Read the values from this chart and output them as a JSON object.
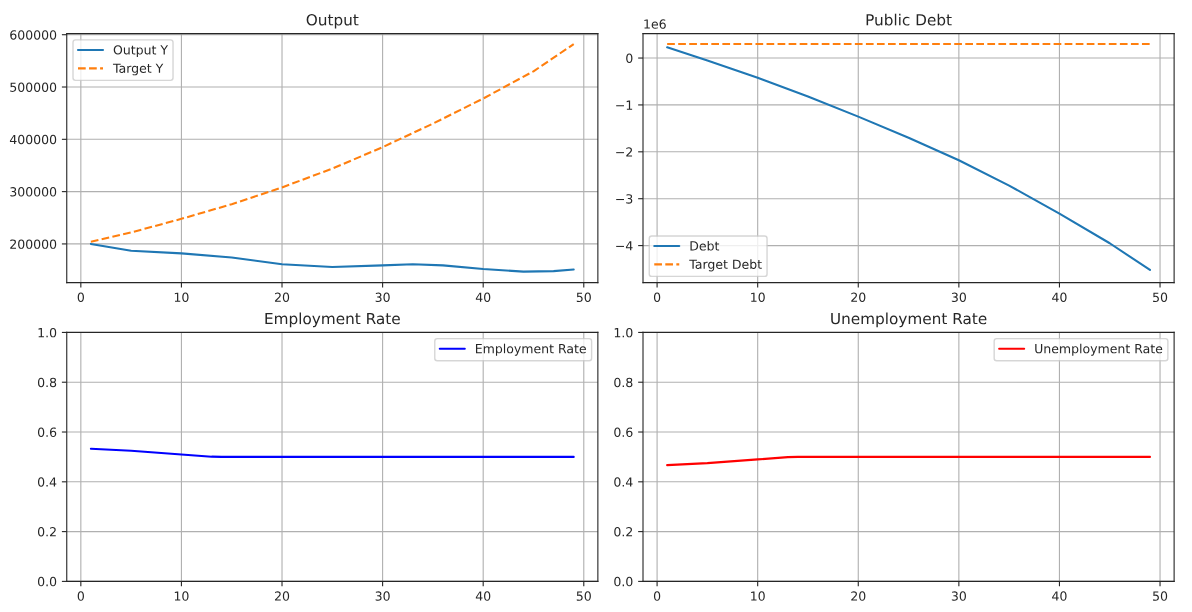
{
  "chart_data": [
    {
      "type": "line",
      "title": "Output",
      "xlim": [
        -1.4,
        51.4
      ],
      "xticks": [
        0,
        10,
        20,
        30,
        40,
        50
      ],
      "ylim": [
        126000,
        602000
      ],
      "yticks": [
        200000,
        300000,
        400000,
        500000,
        600000
      ],
      "grid": true,
      "legend": "top left",
      "series": [
        {
          "name": "Output Y",
          "color": "#1f77b4",
          "line_style": "solid",
          "x": [
            1,
            5,
            10,
            15,
            20,
            25,
            30,
            33,
            36,
            40,
            44,
            47,
            49
          ],
          "values": [
            200000,
            187000,
            182000,
            174000,
            161000,
            156000,
            159000,
            161000,
            159000,
            152000,
            147000,
            148000,
            151000
          ]
        },
        {
          "name": "Target Y",
          "color": "#ff7f0e",
          "line_style": "dashed",
          "x": [
            1,
            5,
            10,
            15,
            20,
            25,
            30,
            35,
            40,
            45,
            49
          ],
          "values": [
            204000,
            222000,
            248000,
            276000,
            308000,
            344000,
            385000,
            430000,
            478000,
            530000,
            582000
          ]
        }
      ]
    },
    {
      "type": "line",
      "title": "Public Debt",
      "annotations": [
        "1e6"
      ],
      "xlim": [
        -1.4,
        51.4
      ],
      "xticks": [
        0,
        10,
        20,
        30,
        40,
        50
      ],
      "ylim": [
        -4.79,
        0.52
      ],
      "yticks": [
        {
          "value": -4,
          "label": "−4"
        },
        {
          "value": -3,
          "label": "−3"
        },
        {
          "value": -2,
          "label": "−2"
        },
        {
          "value": -1,
          "label": "−1"
        },
        0
      ],
      "grid": true,
      "legend": "bottom left",
      "series": [
        {
          "name": "Debt",
          "color": "#1f77b4",
          "line_style": "solid",
          "x": [
            1,
            5,
            10,
            15,
            20,
            25,
            30,
            35,
            40,
            45,
            49
          ],
          "values": [
            0.23,
            -0.05,
            -0.42,
            -0.82,
            -1.25,
            -1.7,
            -2.18,
            -2.72,
            -3.32,
            -3.95,
            -4.52
          ]
        },
        {
          "name": "Target Debt",
          "color": "#ff7f0e",
          "line_style": "dashed",
          "x": [
            1,
            49
          ],
          "values": [
            0.3,
            0.3
          ]
        }
      ]
    },
    {
      "type": "line",
      "title": "Employment Rate",
      "xlim": [
        -1.4,
        51.4
      ],
      "xticks": [
        0,
        10,
        20,
        30,
        40,
        50
      ],
      "ylim": [
        0,
        1
      ],
      "yticks": [
        {
          "value": 0,
          "label": "0.0"
        },
        0.2,
        0.4,
        0.6,
        0.8,
        {
          "value": 1,
          "label": "1.0"
        }
      ],
      "grid": true,
      "legend": "top right",
      "series": [
        {
          "name": "Employment Rate",
          "color": "#0000ff",
          "line_style": "solid",
          "x": [
            1,
            5,
            10,
            13,
            14,
            49
          ],
          "values": [
            0.533,
            0.525,
            0.51,
            0.501,
            0.5,
            0.5
          ]
        }
      ]
    },
    {
      "type": "line",
      "title": "Unemployment Rate",
      "xlim": [
        -1.4,
        51.4
      ],
      "xticks": [
        0,
        10,
        20,
        30,
        40,
        50
      ],
      "ylim": [
        0,
        1
      ],
      "yticks": [
        {
          "value": 0,
          "label": "0.0"
        },
        0.2,
        0.4,
        0.6,
        0.8,
        {
          "value": 1,
          "label": "1.0"
        }
      ],
      "grid": true,
      "legend": "top right",
      "series": [
        {
          "name": "Unemployment Rate",
          "color": "#ff0000",
          "line_style": "solid",
          "x": [
            1,
            5,
            10,
            13,
            14,
            49
          ],
          "values": [
            0.467,
            0.475,
            0.49,
            0.499,
            0.5,
            0.5
          ]
        }
      ]
    }
  ]
}
